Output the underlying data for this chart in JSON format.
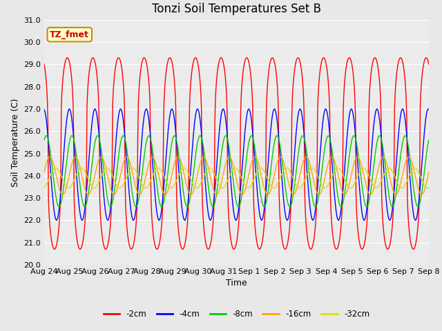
{
  "title": "Tonzi Soil Temperatures Set B",
  "xlabel": "Time",
  "ylabel": "Soil Temperature (C)",
  "ylim": [
    20.0,
    31.0
  ],
  "yticks": [
    20.0,
    21.0,
    22.0,
    23.0,
    24.0,
    25.0,
    26.0,
    27.0,
    28.0,
    29.0,
    30.0,
    31.0
  ],
  "xtick_labels": [
    "Aug 24",
    "Aug 25",
    "Aug 26",
    "Aug 27",
    "Aug 28",
    "Aug 29",
    "Aug 30",
    "Aug 31",
    "Sep 1",
    "Sep 2",
    "Sep 3",
    "Sep 4",
    "Sep 5",
    "Sep 6",
    "Sep 7",
    "Sep 8"
  ],
  "series": [
    {
      "label": "-2cm",
      "color": "#FF0000",
      "amplitude": 4.3,
      "mean": 25.0,
      "phase_days": 0.0,
      "sharpness": 3.0
    },
    {
      "label": "-4cm",
      "color": "#0000FF",
      "amplitude": 2.5,
      "mean": 24.5,
      "phase_days": 0.08,
      "sharpness": 1.5
    },
    {
      "label": "-8cm",
      "color": "#00CC00",
      "amplitude": 1.6,
      "mean": 24.2,
      "phase_days": 0.18,
      "sharpness": 1.0
    },
    {
      "label": "-16cm",
      "color": "#FFA500",
      "amplitude": 0.85,
      "mean": 24.0,
      "phase_days": 0.32,
      "sharpness": 1.0
    },
    {
      "label": "-32cm",
      "color": "#DDDD00",
      "amplitude": 0.45,
      "mean": 23.9,
      "phase_days": 0.55,
      "sharpness": 1.0
    }
  ],
  "annotation_text": "TZ_fmet",
  "annotation_color": "#CC0000",
  "annotation_bg": "#FFFFCC",
  "annotation_border": "#CC8800",
  "background_color": "#E8E8E8",
  "plot_bg": "#EBEBEB",
  "title_fontsize": 12,
  "axis_label_fontsize": 9,
  "tick_fontsize": 8
}
